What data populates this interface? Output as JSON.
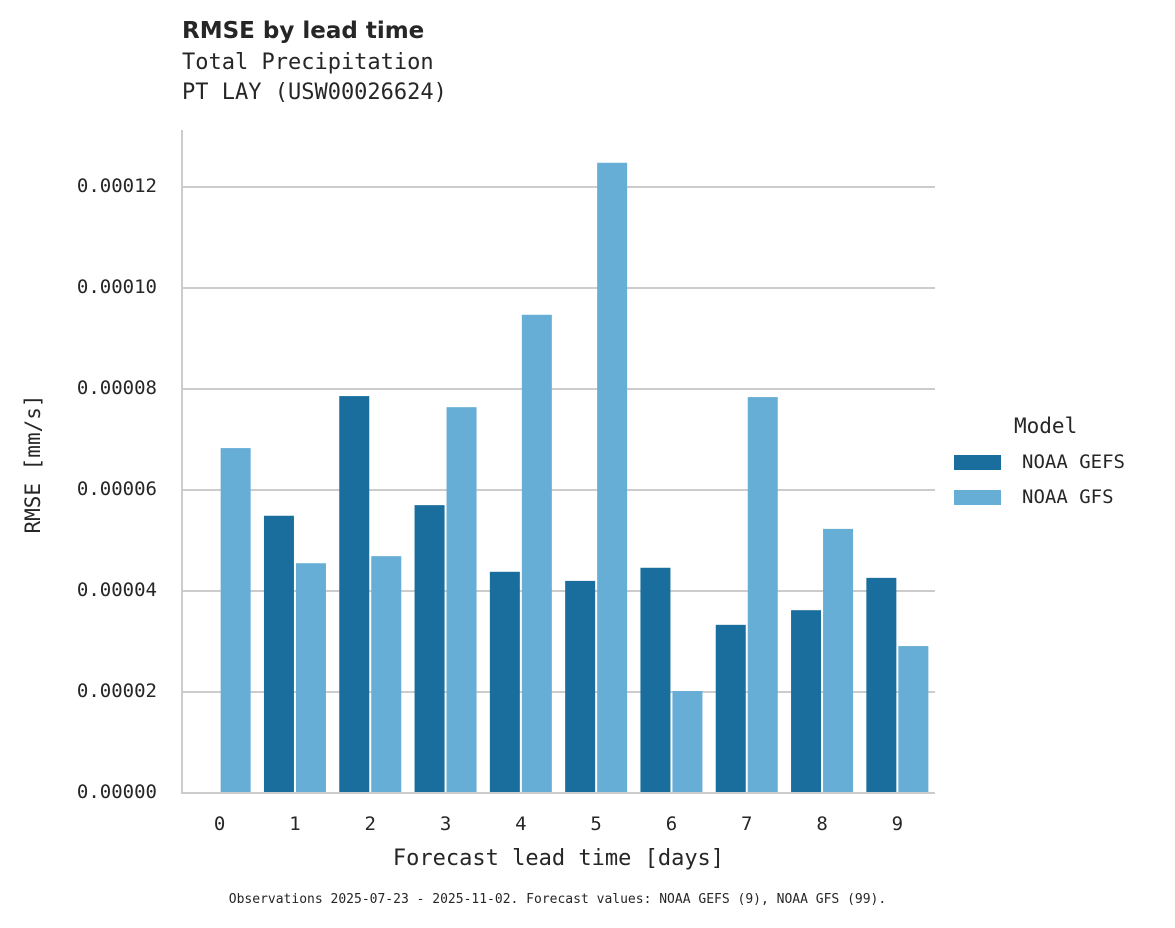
{
  "chart_data": {
    "type": "bar",
    "title": "RMSE by lead time",
    "subtitle_lines": [
      "Total Precipitation",
      "PT LAY (USW00026624)"
    ],
    "xlabel": "Forecast lead time [days]",
    "ylabel": "RMSE [mm/s]",
    "categories": [
      "0",
      "1",
      "2",
      "3",
      "4",
      "5",
      "6",
      "7",
      "8",
      "9"
    ],
    "series": [
      {
        "name": "NOAA GEFS",
        "color": "#1a6e9e",
        "values": [
          null,
          5.49e-05,
          7.86e-05,
          5.7e-05,
          4.38e-05,
          4.2e-05,
          4.46e-05,
          3.33e-05,
          3.62e-05,
          4.26e-05
        ]
      },
      {
        "name": "NOAA GFS",
        "color": "#67aed6",
        "values": [
          6.83e-05,
          4.55e-05,
          4.69e-05,
          7.64e-05,
          9.47e-05,
          0.0001248,
          2.02e-05,
          7.84e-05,
          5.23e-05,
          2.91e-05
        ]
      }
    ],
    "yticks": [
      "0.00000",
      "0.00002",
      "0.00004",
      "0.00006",
      "0.00008",
      "0.00010",
      "0.00012"
    ],
    "ylim": [
      0,
      0.000131
    ],
    "grid": "horizontal",
    "legend": {
      "title": "Model",
      "position": "right"
    },
    "footer": "Observations 2025-07-23 - 2025-11-02. Forecast values: NOAA GEFS (9), NOAA GFS (99)."
  }
}
